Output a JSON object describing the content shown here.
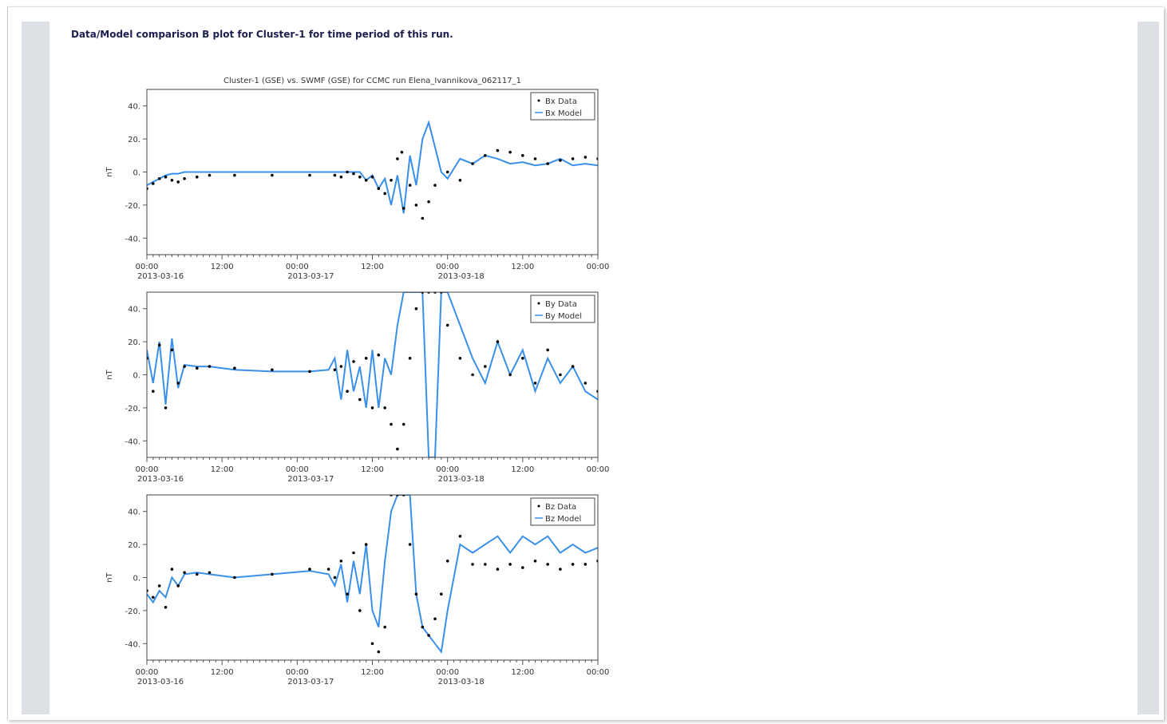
{
  "caption": "Data/Model comparison B plot for Cluster-1 for time period of this run.",
  "colors": {
    "data": "#000000",
    "model": "#3a8fe8",
    "rail": "#dde1e5",
    "caption": "#1a1f4e"
  },
  "chart_data": [
    {
      "type": "line",
      "title": "Cluster-1 (GSE) vs. SWMF (GSE) for CCMC run Elena_Ivannikova_062117_1",
      "ylabel": "nT",
      "ylim": [
        -50,
        50
      ],
      "yticks": [
        -40,
        -20,
        0,
        20,
        40
      ],
      "ytick_labels": [
        "-40.",
        "-20.",
        "0.",
        "20.",
        "40."
      ],
      "xlim_hours": [
        0,
        72
      ],
      "xtick_labels": [
        [
          "00:00",
          "2013-03-16"
        ],
        [
          "12:00",
          ""
        ],
        [
          "00:00",
          "2013-03-17"
        ],
        [
          "12:00",
          ""
        ],
        [
          "00:00",
          "2013-03-18"
        ],
        [
          "12:00",
          ""
        ],
        [
          "00:00",
          ""
        ]
      ],
      "legend": [
        "Bx Data",
        "Bx Model"
      ],
      "legend_position": "top-right",
      "series": [
        {
          "name": "Bx Data",
          "style": "points",
          "x": [
            0,
            1,
            2,
            3,
            4,
            5,
            6,
            8,
            10,
            14,
            20,
            26,
            30,
            31,
            32,
            33,
            34,
            35,
            36,
            37,
            38,
            39,
            40,
            40.7,
            41,
            42,
            43,
            44,
            45,
            46,
            48,
            50,
            52,
            54,
            56,
            58,
            60,
            62,
            64,
            66,
            68,
            70,
            72
          ],
          "values": [
            -10,
            -7,
            -4,
            -3,
            -5,
            -6,
            -4,
            -3,
            -2,
            -2,
            -2,
            -2,
            -2,
            -3,
            0,
            -1,
            -3,
            -5,
            -3,
            -10,
            -13,
            -5,
            8,
            12,
            -22,
            -8,
            -20,
            -28,
            -18,
            -8,
            0,
            -5,
            5,
            10,
            13,
            12,
            10,
            8,
            5,
            7,
            8,
            9,
            8
          ]
        },
        {
          "name": "Bx Model",
          "style": "line",
          "x": [
            0,
            1,
            2,
            3,
            4,
            5,
            6,
            8,
            12,
            20,
            30,
            34,
            35,
            36,
            37,
            38,
            39,
            40,
            41,
            42,
            43,
            44,
            45,
            46,
            47,
            48,
            50,
            52,
            54,
            56,
            58,
            60,
            62,
            64,
            66,
            68,
            70,
            72
          ],
          "values": [
            -8,
            -6,
            -4,
            -2,
            -1,
            -1,
            0,
            0,
            0,
            0,
            0,
            0,
            -5,
            -2,
            -10,
            -4,
            -20,
            -2,
            -25,
            10,
            -8,
            20,
            30,
            15,
            0,
            -4,
            8,
            5,
            10,
            8,
            5,
            6,
            4,
            5,
            8,
            4,
            5,
            4
          ]
        }
      ]
    },
    {
      "type": "line",
      "ylabel": "nT",
      "ylim": [
        -50,
        50
      ],
      "yticks": [
        -40,
        -20,
        0,
        20,
        40
      ],
      "ytick_labels": [
        "-40.",
        "-20.",
        "0.",
        "20.",
        "40."
      ],
      "xlim_hours": [
        0,
        72
      ],
      "xtick_labels": [
        [
          "00:00",
          "2013-03-16"
        ],
        [
          "12:00",
          ""
        ],
        [
          "00:00",
          "2013-03-17"
        ],
        [
          "12:00",
          ""
        ],
        [
          "00:00",
          "2013-03-18"
        ],
        [
          "12:00",
          ""
        ],
        [
          "00:00",
          ""
        ]
      ],
      "legend": [
        "By Data",
        "By Model"
      ],
      "legend_position": "top-right",
      "series": [
        {
          "name": "By Data",
          "style": "points",
          "x": [
            0,
            1,
            2,
            3,
            4,
            5,
            6,
            8,
            10,
            14,
            20,
            26,
            30,
            31,
            32,
            33,
            34,
            35,
            36,
            37,
            38,
            39,
            40,
            41,
            42,
            43,
            44,
            45,
            46,
            47,
            48,
            50,
            52,
            54,
            56,
            58,
            60,
            62,
            64,
            66,
            68,
            70,
            72
          ],
          "values": [
            10,
            -10,
            18,
            -20,
            15,
            -5,
            5,
            4,
            5,
            4,
            3,
            2,
            3,
            5,
            -10,
            8,
            -15,
            10,
            -20,
            12,
            -20,
            -30,
            -45,
            -30,
            10,
            40,
            50,
            50,
            50,
            50,
            30,
            10,
            0,
            5,
            20,
            0,
            10,
            -5,
            15,
            0,
            5,
            -5,
            -10
          ]
        },
        {
          "name": "By Model",
          "style": "line",
          "x": [
            0,
            1,
            2,
            3,
            4,
            5,
            6,
            8,
            10,
            14,
            20,
            26,
            29,
            30,
            31,
            32,
            33,
            34,
            35,
            36,
            37,
            38,
            39,
            40,
            41,
            42,
            43,
            44,
            45,
            46,
            47,
            48,
            50,
            52,
            54,
            56,
            58,
            60,
            62,
            64,
            66,
            68,
            70,
            72
          ],
          "values": [
            15,
            -5,
            20,
            -18,
            22,
            -8,
            6,
            5,
            5,
            3,
            2,
            2,
            3,
            10,
            -15,
            15,
            -10,
            5,
            -20,
            15,
            -20,
            10,
            0,
            30,
            50,
            50,
            50,
            50,
            -50,
            -50,
            50,
            50,
            30,
            10,
            -5,
            20,
            0,
            15,
            -10,
            10,
            -5,
            5,
            -10,
            -15
          ]
        }
      ]
    },
    {
      "type": "line",
      "ylabel": "nT",
      "ylim": [
        -50,
        50
      ],
      "yticks": [
        -40,
        -20,
        0,
        20,
        40
      ],
      "ytick_labels": [
        "-40.",
        "-20.",
        "0.",
        "20.",
        "40."
      ],
      "xlim_hours": [
        0,
        72
      ],
      "xtick_labels": [
        [
          "00:00",
          "2013-03-16"
        ],
        [
          "12:00",
          ""
        ],
        [
          "00:00",
          "2013-03-17"
        ],
        [
          "12:00",
          ""
        ],
        [
          "00:00",
          "2013-03-18"
        ],
        [
          "12:00",
          ""
        ],
        [
          "00:00",
          ""
        ]
      ],
      "legend": [
        "Bz Data",
        "Bz Model"
      ],
      "legend_position": "top-right",
      "series": [
        {
          "name": "Bz Data",
          "style": "points",
          "x": [
            0,
            1,
            2,
            3,
            4,
            5,
            6,
            8,
            10,
            14,
            20,
            26,
            29,
            30,
            31,
            32,
            33,
            34,
            35,
            36,
            37,
            38,
            39,
            40,
            41,
            42,
            43,
            44,
            45,
            46,
            47,
            48,
            50,
            52,
            54,
            56,
            58,
            60,
            62,
            64,
            66,
            68,
            70,
            72
          ],
          "values": [
            -8,
            -12,
            -5,
            -18,
            5,
            -5,
            3,
            2,
            3,
            0,
            2,
            5,
            5,
            0,
            10,
            -10,
            15,
            -20,
            20,
            -40,
            -45,
            -30,
            50,
            50,
            50,
            20,
            -10,
            -30,
            -35,
            -25,
            -10,
            10,
            25,
            8,
            8,
            5,
            8,
            6,
            10,
            8,
            5,
            8,
            8,
            10
          ]
        },
        {
          "name": "Bz Model",
          "style": "line",
          "x": [
            0,
            1,
            2,
            3,
            4,
            5,
            6,
            8,
            10,
            14,
            20,
            26,
            29,
            30,
            31,
            32,
            33,
            34,
            35,
            36,
            37,
            38,
            39,
            40,
            41,
            42,
            43,
            44,
            45,
            46,
            47,
            48,
            50,
            52,
            54,
            56,
            58,
            60,
            62,
            64,
            66,
            68,
            70,
            72
          ],
          "values": [
            -10,
            -15,
            -8,
            -12,
            0,
            -5,
            2,
            3,
            2,
            0,
            2,
            4,
            2,
            -5,
            8,
            -15,
            10,
            -10,
            20,
            -20,
            -30,
            10,
            40,
            50,
            50,
            50,
            -10,
            -30,
            -35,
            -40,
            -45,
            -20,
            20,
            15,
            20,
            25,
            15,
            25,
            20,
            25,
            15,
            20,
            15,
            18
          ]
        }
      ]
    }
  ]
}
